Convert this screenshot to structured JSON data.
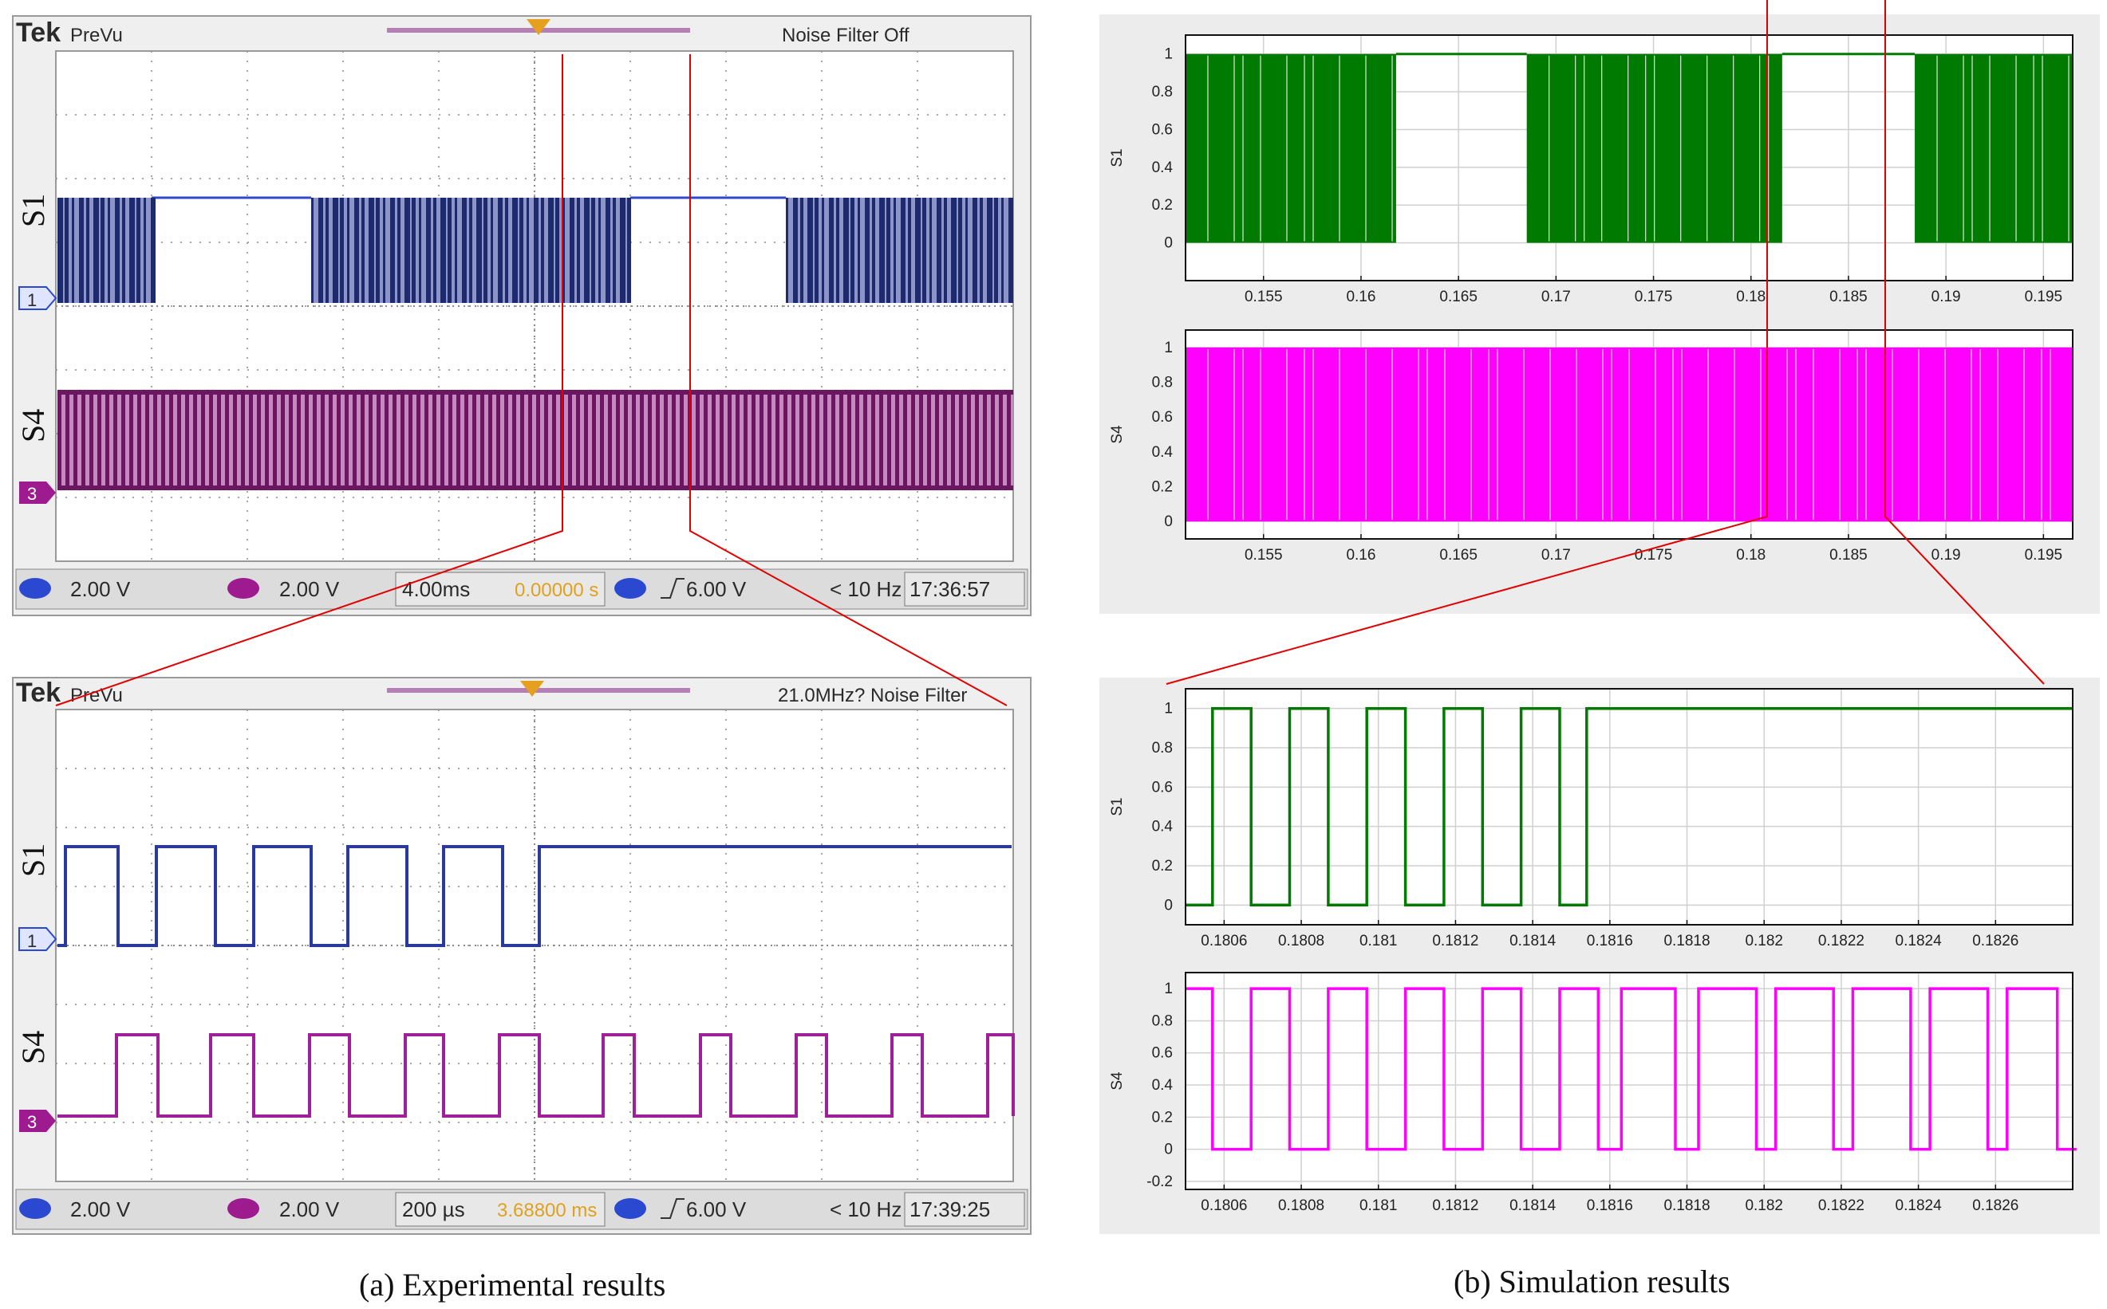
{
  "captions": {
    "left": "(a) Experimental results",
    "right": "(b) Simulation results"
  },
  "scope_top": {
    "brand": "Tek",
    "mode": "PreVu",
    "status": "Noise Filter Off",
    "ch1_label": "S1",
    "ch3_label": "S4",
    "ch1_marker": "1",
    "ch3_marker": "3",
    "ch1_scale": "2.00 V",
    "ch3_scale": "2.00 V",
    "timebase": "4.00ms",
    "delay": "0.00000 s",
    "trigger": "6.00 V",
    "freq": "< 10 Hz",
    "time": "17:36:57",
    "colors": {
      "ch1": "#1e2a6e",
      "ch1_light": "#8d95c8",
      "ch3": "#6a1660",
      "ch3_light": "#c489bd"
    }
  },
  "scope_bottom": {
    "brand": "Tek",
    "mode": "PreVu",
    "status": "21.0MHz? Noise Filter",
    "ch1_label": "S1",
    "ch3_label": "S4",
    "ch1_marker": "1",
    "ch3_marker": "3",
    "ch1_scale": "2.00 V",
    "ch3_scale": "2.00 V",
    "timebase": "200 µs",
    "delay": "3.68800 ms",
    "trigger": "6.00 V",
    "freq": "< 10 Hz",
    "time": "17:39:25"
  },
  "chart_data": [
    {
      "id": "sim_top_s1",
      "type": "line",
      "ylabel": "S1",
      "xlim": [
        0.151,
        0.1965
      ],
      "ylim": [
        -0.2,
        1.1
      ],
      "yticks": [
        0,
        0.2,
        0.4,
        0.6,
        0.8,
        1
      ],
      "xticks": [
        0.155,
        0.16,
        0.165,
        0.17,
        0.175,
        0.18,
        0.185,
        0.19,
        0.195
      ],
      "xticklabels": [
        "0.155",
        "0.16",
        "0.165",
        "0.17",
        "0.175",
        "0.18",
        "0.185",
        "0.19",
        "0.195"
      ],
      "ytickLabels": [
        "0",
        "0.2",
        "0.4",
        "0.6",
        "0.8",
        "1"
      ],
      "color": "#007a00",
      "switching_intervals": [
        [
          0.151,
          0.1618
        ],
        [
          0.1685,
          0.1816
        ],
        [
          0.1884,
          0.1965
        ]
      ],
      "steady_high_intervals": [
        [
          0.1618,
          0.1685
        ],
        [
          0.1816,
          0.1884
        ]
      ]
    },
    {
      "id": "sim_top_s4",
      "type": "line",
      "ylabel": "S4",
      "xlim": [
        0.151,
        0.1965
      ],
      "ylim": [
        -0.1,
        1.1
      ],
      "yticks": [
        0,
        0.2,
        0.4,
        0.6,
        0.8,
        1
      ],
      "xticks": [
        0.155,
        0.16,
        0.165,
        0.17,
        0.175,
        0.18,
        0.185,
        0.19,
        0.195
      ],
      "xticklabels": [
        "0.155",
        "0.16",
        "0.165",
        "0.17",
        "0.175",
        "0.18",
        "0.185",
        "0.19",
        "0.195"
      ],
      "ytickLabels": [
        "0",
        "0.2",
        "0.4",
        "0.6",
        "0.8",
        "1"
      ],
      "color": "#ff00ff",
      "switching_intervals": [
        [
          0.151,
          0.1965
        ]
      ]
    },
    {
      "id": "sim_zoom_s1",
      "type": "line",
      "ylabel": "S1",
      "xlim": [
        0.1805,
        0.1828
      ],
      "ylim": [
        -0.1,
        1.1
      ],
      "yticks": [
        0,
        0.2,
        0.4,
        0.6,
        0.8,
        1
      ],
      "xticks": [
        0.1806,
        0.1808,
        0.181,
        0.1812,
        0.1814,
        0.1816,
        0.1818,
        0.182,
        0.1822,
        0.1824,
        0.1826
      ],
      "xticklabels": [
        "0.1806",
        "0.1808",
        "0.181",
        "0.1812",
        "0.1814",
        "0.1816",
        "0.1818",
        "0.182",
        "0.1822",
        "0.1824",
        "0.1826"
      ],
      "ytickLabels": [
        "0",
        "0.2",
        "0.4",
        "0.6",
        "0.8",
        "1"
      ],
      "color": "#007a00",
      "x": [
        0.1805,
        0.18057,
        0.18057,
        0.18067,
        0.18067,
        0.18077,
        0.18077,
        0.18087,
        0.18087,
        0.18097,
        0.18097,
        0.18107,
        0.18107,
        0.18117,
        0.18117,
        0.18127,
        0.18127,
        0.18137,
        0.18137,
        0.18147,
        0.18147,
        0.18154,
        0.18154,
        0.1828
      ],
      "y": [
        0,
        0,
        1,
        1,
        0,
        0,
        1,
        1,
        0,
        0,
        1,
        1,
        0,
        0,
        1,
        1,
        0,
        0,
        1,
        1,
        0,
        0,
        1,
        1
      ]
    },
    {
      "id": "sim_zoom_s4",
      "type": "line",
      "ylabel": "S4",
      "xlim": [
        0.1805,
        0.1828
      ],
      "ylim": [
        -0.25,
        1.1
      ],
      "yticks": [
        -0.2,
        0,
        0.2,
        0.4,
        0.6,
        0.8,
        1
      ],
      "xticks": [
        0.1806,
        0.1808,
        0.181,
        0.1812,
        0.1814,
        0.1816,
        0.1818,
        0.182,
        0.1822,
        0.1824,
        0.1826
      ],
      "xticklabels": [
        "0.1806",
        "0.1808",
        "0.181",
        "0.1812",
        "0.1814",
        "0.1816",
        "0.1818",
        "0.182",
        "0.1822",
        "0.1824",
        "0.1826"
      ],
      "ytickLabels": [
        "-0.2",
        "0",
        "0.2",
        "0.4",
        "0.6",
        "0.8",
        "1"
      ],
      "color": "#ff00ff",
      "x": [
        0.1805,
        0.18057,
        0.18057,
        0.18067,
        0.18067,
        0.18077,
        0.18077,
        0.18087,
        0.18087,
        0.18097,
        0.18097,
        0.18107,
        0.18107,
        0.18117,
        0.18117,
        0.18127,
        0.18127,
        0.18137,
        0.18137,
        0.18147,
        0.18147,
        0.18157,
        0.18157,
        0.18163,
        0.18163,
        0.18177,
        0.18177,
        0.18183,
        0.18183,
        0.18198,
        0.18198,
        0.18203,
        0.18203,
        0.18218,
        0.18218,
        0.18223,
        0.18223,
        0.18238,
        0.18238,
        0.18243,
        0.18243,
        0.18258,
        0.18258,
        0.18263,
        0.18263,
        0.18276,
        0.18276,
        0.18281
      ],
      "y": [
        1,
        1,
        0,
        0,
        1,
        1,
        0,
        0,
        1,
        1,
        0,
        0,
        1,
        1,
        0,
        0,
        1,
        1,
        0,
        0,
        1,
        1,
        0,
        0,
        1,
        1,
        0,
        0,
        1,
        1,
        0,
        0,
        1,
        1,
        0,
        0,
        1,
        1,
        0,
        0,
        1,
        1,
        0,
        0,
        1,
        1,
        0,
        0
      ]
    }
  ]
}
